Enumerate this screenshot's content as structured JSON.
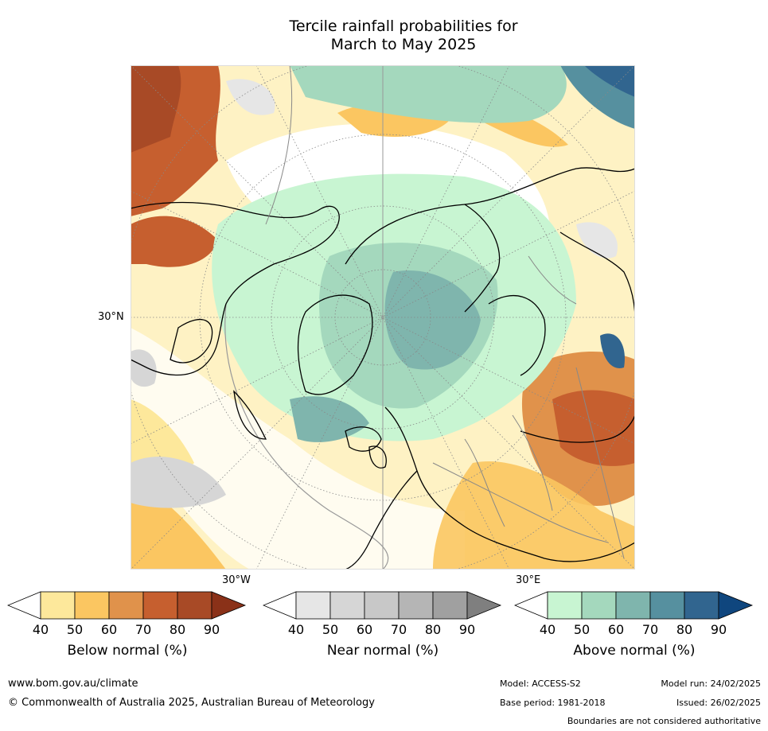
{
  "title_line1": "Tercile rainfall probabilities for",
  "title_line2": "March to May 2025",
  "axis_labels": {
    "lat": "30°N",
    "lon_west": "30°W",
    "lon_east": "30°E"
  },
  "legends": [
    {
      "title": "Below normal (%)",
      "ticks": [
        "40",
        "50",
        "60",
        "70",
        "80",
        "90"
      ],
      "colors": [
        "#ffffff",
        "#fde89b",
        "#fbc661",
        "#e0924b",
        "#c65f2f",
        "#a84a26",
        "#8a3118"
      ]
    },
    {
      "title": "Near normal (%)",
      "ticks": [
        "40",
        "50",
        "60",
        "70",
        "80",
        "90"
      ],
      "colors": [
        "#ffffff",
        "#e6e6e6",
        "#d6d6d6",
        "#c8c8c8",
        "#b5b5b5",
        "#a0a0a0",
        "#7f7f7f"
      ]
    },
    {
      "title": "Above normal (%)",
      "ticks": [
        "40",
        "50",
        "60",
        "70",
        "80",
        "90"
      ],
      "colors": [
        "#ffffff",
        "#c8f5d2",
        "#a4d8bd",
        "#7fb5ad",
        "#56909f",
        "#31658f",
        "#0f467e"
      ]
    }
  ],
  "footer": {
    "website": "www.bom.gov.au/climate",
    "copyright": "© Commonwealth of Australia 2025, Australian Bureau of Meteorology",
    "model": "Model: ACCESS-S2",
    "model_run": "Model run: 24/02/2025",
    "base_period": "Base period: 1981-2018",
    "issued": "Issued: 26/02/2025",
    "disclaimer": "Boundaries are not considered authoritative"
  }
}
